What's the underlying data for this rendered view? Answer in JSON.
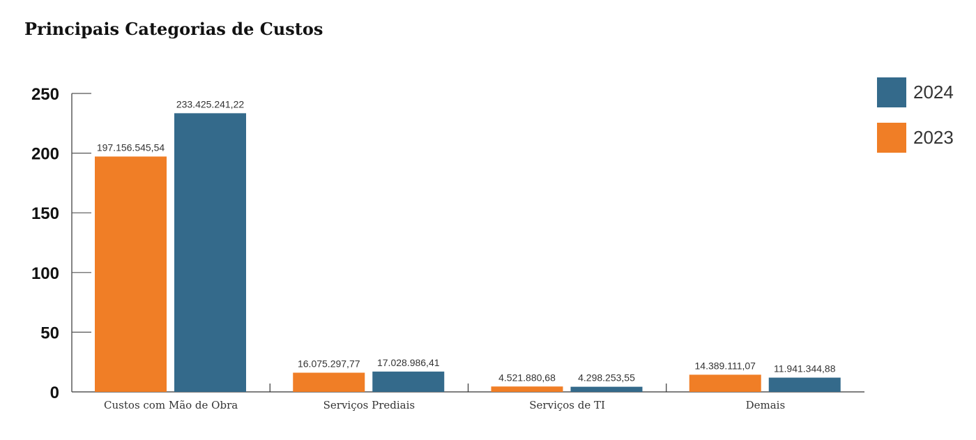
{
  "chart_data": {
    "type": "bar",
    "title": "Principais Categorias de Custos",
    "categories": [
      "Custos com Mão de Obra",
      "Serviços Prediais",
      "Serviços de TI",
      "Demais"
    ],
    "series": [
      {
        "name": "2023",
        "color": "#F07E26",
        "values": [
          197.156545,
          16.075298,
          4.521881,
          14.389111
        ],
        "labels": [
          "197.156.545,54",
          "16.075.297,77",
          "4.521.880,68",
          "14.389.111,07"
        ]
      },
      {
        "name": "2024",
        "color": "#346A8B",
        "values": [
          233.425241,
          17.028986,
          4.298254,
          11.941345
        ],
        "labels": [
          "233.425.241,22",
          "17.028.986,41",
          "4.298.253,55",
          "11.941.344,88"
        ]
      }
    ],
    "legend_order": [
      "2024",
      "2023"
    ],
    "yticks": [
      "0",
      "50",
      "100",
      "150",
      "200",
      "250"
    ],
    "ylim": [
      0,
      250
    ],
    "grid": false,
    "legend_position": "right",
    "xlabel": "",
    "ylabel": ""
  }
}
